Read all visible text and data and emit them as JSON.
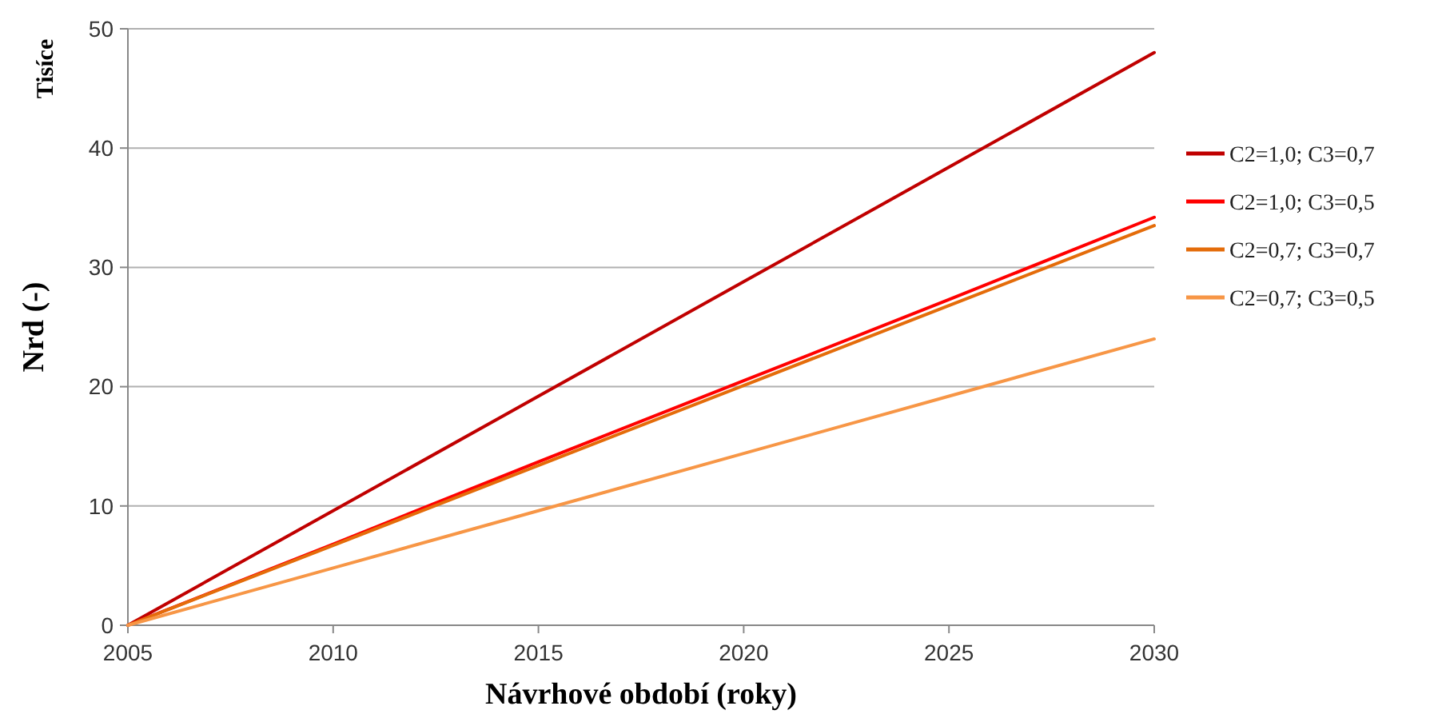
{
  "chart_data": {
    "type": "line",
    "xlabel": "Návrhové období (roky)",
    "ylabel": "Nrd  (-)",
    "annotations": [
      "Tisíce"
    ],
    "x": [
      2005,
      2010,
      2015,
      2020,
      2025,
      2030
    ],
    "series": [
      {
        "name": "C2=1,0; C3=0,7",
        "color": "#c00000",
        "values": [
          0,
          9.6,
          19.2,
          28.8,
          38.4,
          48
        ]
      },
      {
        "name": "C2=1,0; C3=0,5",
        "color": "#ff0000",
        "values": [
          0,
          6.8,
          13.7,
          20.5,
          27.3,
          34.2
        ]
      },
      {
        "name": "C2=0,7; C3=0,7",
        "color": "#e46c0a",
        "values": [
          0,
          6.7,
          13.4,
          20.1,
          26.8,
          33.5
        ]
      },
      {
        "name": "C2=0,7; C3=0,5",
        "color": "#f79646",
        "values": [
          0,
          4.8,
          9.6,
          14.4,
          19.2,
          24
        ]
      }
    ],
    "xlim": [
      2005,
      2030
    ],
    "xticks": [
      2005,
      2010,
      2015,
      2020,
      2025,
      2030
    ],
    "ylim": [
      0,
      50
    ],
    "yticks": [
      0,
      10,
      20,
      30,
      40,
      50
    ],
    "grid": "y",
    "legend": "right",
    "marker": "none",
    "line_style": "solid"
  }
}
